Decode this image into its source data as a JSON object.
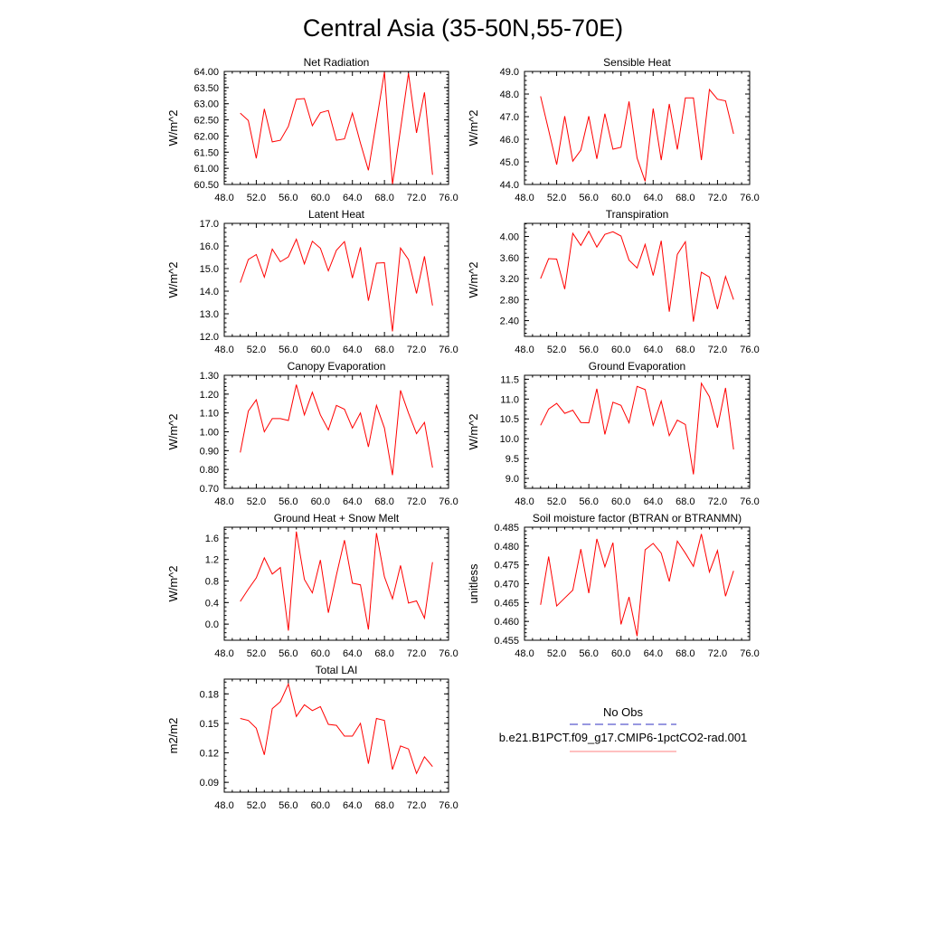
{
  "figure": {
    "title": "Central Asia (35-50N,55-70E)"
  },
  "legend": {
    "entries": [
      {
        "label": "No Obs",
        "color": "#3030c0",
        "style": "dashed"
      },
      {
        "label": "b.e21.B1PCT.f09_g17.CMIP6-1pctCO2-rad.001",
        "color": "#ff0000",
        "style": "solid"
      }
    ]
  },
  "chart_data": [
    {
      "type": "line",
      "title": "Net Radiation",
      "ylabel": "W/m^2",
      "xlim": [
        48,
        76
      ],
      "ylim": [
        60.5,
        64.0
      ],
      "xticks": [
        "48.0",
        "52.0",
        "56.0",
        "60.0",
        "64.0",
        "68.0",
        "72.0",
        "76.0"
      ],
      "yticks": [
        60.5,
        61.0,
        61.5,
        62.0,
        62.5,
        63.0,
        63.5,
        64.0
      ],
      "ytick_labels": [
        "60.50",
        "61.00",
        "61.50",
        "62.00",
        "62.50",
        "63.00",
        "63.50",
        "64.00"
      ],
      "series": [
        {
          "color": "#ff0000",
          "x": [
            50,
            51,
            52,
            53,
            54,
            55,
            56,
            57,
            58,
            59,
            60,
            61,
            62,
            63,
            64,
            65,
            66,
            67,
            68,
            69,
            70,
            71,
            72,
            73,
            74
          ],
          "y": [
            62.71,
            62.48,
            61.31,
            62.84,
            61.82,
            61.87,
            62.3,
            63.14,
            63.16,
            62.32,
            62.72,
            62.79,
            61.87,
            61.91,
            62.71,
            61.78,
            60.94,
            62.46,
            63.98,
            60.5,
            62.21,
            63.94,
            62.1,
            63.35,
            60.8
          ]
        }
      ]
    },
    {
      "type": "line",
      "title": "Sensible Heat",
      "ylabel": "W/m^2",
      "xlim": [
        48,
        76
      ],
      "ylim": [
        44.0,
        49.0
      ],
      "xticks": [
        "48.0",
        "52.0",
        "56.0",
        "60.0",
        "64.0",
        "68.0",
        "72.0",
        "76.0"
      ],
      "yticks": [
        44,
        45,
        46,
        47,
        48,
        49
      ],
      "ytick_labels": [
        "44.0",
        "45.0",
        "46.0",
        "47.0",
        "48.0",
        "49.0"
      ],
      "series": [
        {
          "color": "#ff0000",
          "x": [
            50,
            51,
            52,
            53,
            54,
            55,
            56,
            57,
            58,
            59,
            60,
            61,
            62,
            63,
            64,
            65,
            66,
            67,
            68,
            69,
            70,
            71,
            72,
            73,
            74
          ],
          "y": [
            47.9,
            46.4,
            44.88,
            47.02,
            45.03,
            45.52,
            47.02,
            45.13,
            47.13,
            45.56,
            45.65,
            47.67,
            45.17,
            44.14,
            47.36,
            45.08,
            47.56,
            45.55,
            47.83,
            47.83,
            45.08,
            48.2,
            47.77,
            47.7,
            46.24
          ]
        }
      ]
    },
    {
      "type": "line",
      "title": "Latent Heat",
      "ylabel": "W/m^2",
      "xlim": [
        48,
        76
      ],
      "ylim": [
        12.0,
        17.0
      ],
      "xticks": [
        "48.0",
        "52.0",
        "56.0",
        "60.0",
        "64.0",
        "68.0",
        "72.0",
        "76.0"
      ],
      "yticks": [
        12,
        13,
        14,
        15,
        16,
        17
      ],
      "ytick_labels": [
        "12.0",
        "13.0",
        "14.0",
        "15.0",
        "16.0",
        "17.0"
      ],
      "series": [
        {
          "color": "#ff0000",
          "x": [
            50,
            51,
            52,
            53,
            54,
            55,
            56,
            57,
            58,
            59,
            60,
            61,
            62,
            63,
            64,
            65,
            66,
            67,
            68,
            69,
            70,
            71,
            72,
            73,
            74
          ],
          "y": [
            14.38,
            15.4,
            15.62,
            14.62,
            15.86,
            15.3,
            15.52,
            16.3,
            15.21,
            16.21,
            15.9,
            14.9,
            15.81,
            16.19,
            14.58,
            15.94,
            13.58,
            15.24,
            15.26,
            12.22,
            15.91,
            15.4,
            13.9,
            15.54,
            13.37
          ]
        }
      ]
    },
    {
      "type": "line",
      "title": "Transpiration",
      "ylabel": "W/m^2",
      "xlim": [
        48,
        76
      ],
      "ylim": [
        2.1,
        4.25
      ],
      "xticks": [
        "48.0",
        "52.0",
        "56.0",
        "60.0",
        "64.0",
        "68.0",
        "72.0",
        "76.0"
      ],
      "yticks": [
        2.4,
        2.8,
        3.2,
        3.6,
        4.0
      ],
      "ytick_labels": [
        "2.40",
        "2.80",
        "3.20",
        "3.60",
        "4.00"
      ],
      "series": [
        {
          "color": "#ff0000",
          "x": [
            50,
            51,
            52,
            53,
            54,
            55,
            56,
            57,
            58,
            59,
            60,
            61,
            62,
            63,
            64,
            65,
            66,
            67,
            68,
            69,
            70,
            71,
            72,
            73,
            74
          ],
          "y": [
            3.2,
            3.58,
            3.57,
            3.0,
            4.06,
            3.83,
            4.1,
            3.8,
            4.04,
            4.09,
            4.01,
            3.55,
            3.4,
            3.85,
            3.26,
            3.92,
            2.57,
            3.66,
            3.9,
            2.38,
            3.32,
            3.23,
            2.62,
            3.24,
            2.8
          ]
        }
      ]
    },
    {
      "type": "line",
      "title": "Canopy Evaporation",
      "ylabel": "W/m^2",
      "xlim": [
        48,
        76
      ],
      "ylim": [
        0.7,
        1.3
      ],
      "xticks": [
        "48.0",
        "52.0",
        "56.0",
        "60.0",
        "64.0",
        "68.0",
        "72.0",
        "76.0"
      ],
      "yticks": [
        0.7,
        0.8,
        0.9,
        1.0,
        1.1,
        1.2,
        1.3
      ],
      "ytick_labels": [
        "0.70",
        "0.80",
        "0.90",
        "1.00",
        "1.10",
        "1.20",
        "1.30"
      ],
      "series": [
        {
          "color": "#ff0000",
          "x": [
            50,
            51,
            52,
            53,
            54,
            55,
            56,
            57,
            58,
            59,
            60,
            61,
            62,
            63,
            64,
            65,
            66,
            67,
            68,
            69,
            70,
            71,
            72,
            73,
            74
          ],
          "y": [
            0.89,
            1.11,
            1.17,
            1.0,
            1.07,
            1.07,
            1.06,
            1.25,
            1.09,
            1.21,
            1.09,
            1.01,
            1.14,
            1.12,
            1.02,
            1.1,
            0.92,
            1.14,
            1.02,
            0.77,
            1.22,
            1.1,
            0.99,
            1.05,
            0.81
          ]
        }
      ]
    },
    {
      "type": "line",
      "title": "Ground Evaporation",
      "ylabel": "W/m^2",
      "xlim": [
        48,
        76
      ],
      "ylim": [
        8.75,
        11.6
      ],
      "xticks": [
        "48.0",
        "52.0",
        "56.0",
        "60.0",
        "64.0",
        "68.0",
        "72.0",
        "76.0"
      ],
      "yticks": [
        9.0,
        9.5,
        10.0,
        10.5,
        11.0,
        11.5
      ],
      "ytick_labels": [
        "9.0",
        "9.5",
        "10.0",
        "10.5",
        "11.0",
        "11.5"
      ],
      "series": [
        {
          "color": "#ff0000",
          "x": [
            50,
            51,
            52,
            53,
            54,
            55,
            56,
            57,
            58,
            59,
            60,
            61,
            62,
            63,
            64,
            65,
            66,
            67,
            68,
            69,
            70,
            71,
            72,
            73,
            74
          ],
          "y": [
            10.34,
            10.75,
            10.89,
            10.64,
            10.72,
            10.41,
            10.4,
            11.26,
            10.11,
            10.92,
            10.84,
            10.4,
            11.32,
            11.24,
            10.34,
            10.95,
            10.08,
            10.47,
            10.36,
            9.1,
            11.4,
            11.06,
            10.28,
            11.28,
            9.73
          ]
        }
      ]
    },
    {
      "type": "line",
      "title": "Ground Heat + Snow Melt",
      "ylabel": "W/m^2",
      "xlim": [
        48,
        76
      ],
      "ylim": [
        -0.3,
        1.8
      ],
      "xticks": [
        "48.0",
        "52.0",
        "56.0",
        "60.0",
        "64.0",
        "68.0",
        "72.0",
        "76.0"
      ],
      "yticks": [
        0.0,
        0.4,
        0.8,
        1.2,
        1.6
      ],
      "ytick_labels": [
        "0.0",
        "0.4",
        "0.8",
        "1.2",
        "1.6"
      ],
      "series": [
        {
          "color": "#ff0000",
          "x": [
            50,
            51,
            52,
            53,
            54,
            55,
            56,
            57,
            58,
            59,
            60,
            61,
            62,
            63,
            64,
            65,
            66,
            67,
            68,
            69,
            70,
            71,
            72,
            73,
            74
          ],
          "y": [
            0.42,
            0.65,
            0.86,
            1.23,
            0.93,
            1.05,
            -0.12,
            1.72,
            0.83,
            0.58,
            1.19,
            0.21,
            0.91,
            1.56,
            0.76,
            0.73,
            -0.1,
            1.69,
            0.88,
            0.47,
            1.09,
            0.39,
            0.43,
            0.11,
            1.15
          ]
        }
      ]
    },
    {
      "type": "line",
      "title": "Soil moisture factor (BTRAN or BTRANMN)",
      "ylabel": "unitless",
      "xlim": [
        48,
        76
      ],
      "ylim": [
        0.455,
        0.485
      ],
      "xticks": [
        "48.0",
        "52.0",
        "56.0",
        "60.0",
        "64.0",
        "68.0",
        "72.0",
        "76.0"
      ],
      "yticks": [
        0.455,
        0.46,
        0.465,
        0.47,
        0.475,
        0.48,
        0.485
      ],
      "ytick_labels": [
        "0.455",
        "0.460",
        "0.465",
        "0.470",
        "0.475",
        "0.480",
        "0.485"
      ],
      "series": [
        {
          "color": "#ff0000",
          "x": [
            50,
            51,
            52,
            53,
            54,
            55,
            56,
            57,
            58,
            59,
            60,
            61,
            62,
            63,
            64,
            65,
            66,
            67,
            68,
            69,
            70,
            71,
            72,
            73,
            74
          ],
          "y": [
            0.4644,
            0.4772,
            0.4641,
            0.4662,
            0.4683,
            0.4792,
            0.4675,
            0.4819,
            0.4745,
            0.4809,
            0.4592,
            0.4665,
            0.4561,
            0.479,
            0.4807,
            0.4781,
            0.4706,
            0.4813,
            0.4781,
            0.4746,
            0.4832,
            0.4731,
            0.4788,
            0.4667,
            0.4734
          ]
        }
      ]
    },
    {
      "type": "line",
      "title": "Total LAI",
      "ylabel": "m2/m2",
      "xlim": [
        48,
        76
      ],
      "ylim": [
        0.08,
        0.195
      ],
      "xticks": [
        "48.0",
        "52.0",
        "56.0",
        "60.0",
        "64.0",
        "68.0",
        "72.0",
        "76.0"
      ],
      "yticks": [
        0.09,
        0.12,
        0.15,
        0.18
      ],
      "ytick_labels": [
        "0.09",
        "0.12",
        "0.15",
        "0.18"
      ],
      "series": [
        {
          "color": "#ff0000",
          "x": [
            50,
            51,
            52,
            53,
            54,
            55,
            56,
            57,
            58,
            59,
            60,
            61,
            62,
            63,
            64,
            65,
            66,
            67,
            68,
            69,
            70,
            71,
            72,
            73,
            74
          ],
          "y": [
            0.155,
            0.153,
            0.145,
            0.118,
            0.165,
            0.172,
            0.19,
            0.157,
            0.169,
            0.163,
            0.167,
            0.149,
            0.148,
            0.137,
            0.137,
            0.15,
            0.109,
            0.155,
            0.153,
            0.103,
            0.127,
            0.124,
            0.099,
            0.116,
            0.106
          ]
        }
      ]
    }
  ]
}
